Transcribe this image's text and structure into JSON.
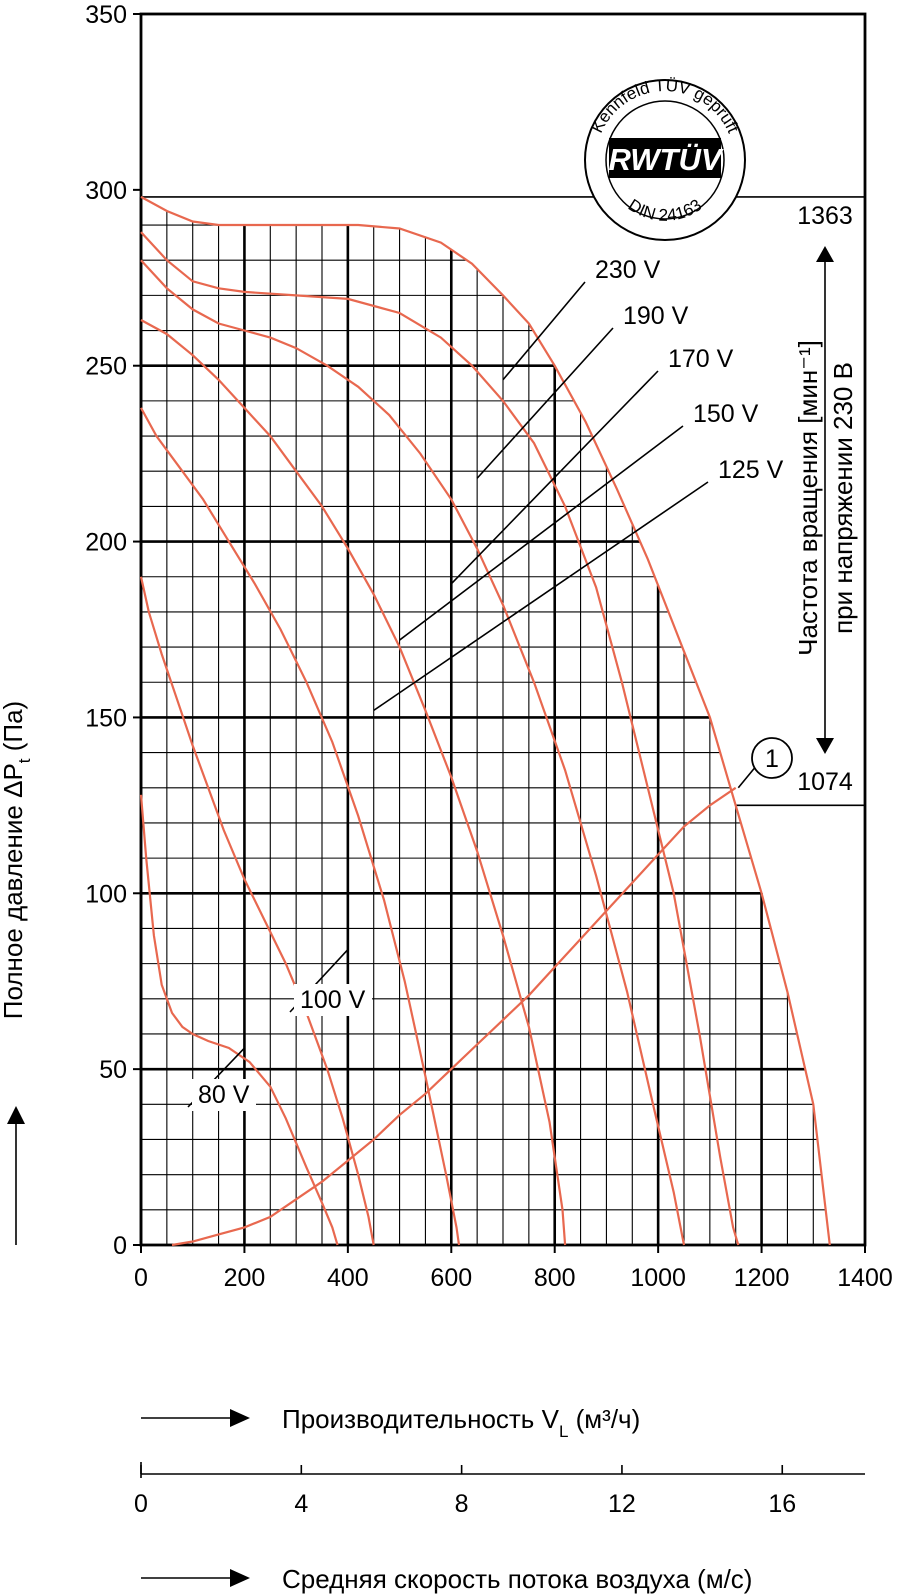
{
  "chart_data": {
    "type": "line",
    "xlabel_main": "Производительность V",
    "xlabel_sub": "L",
    "xlabel_unit": " (м³/ч)",
    "x2label": "Средняя скорость потока воздуха (м/с)",
    "ylabel_main": "Полное давление ΔP",
    "ylabel_sub": "t",
    "ylabel_unit": " (Па)",
    "xlim": [
      0,
      1400
    ],
    "ylim": [
      0,
      350
    ],
    "x_ticks": [
      "0",
      "200",
      "400",
      "600",
      "800",
      "1000",
      "1200",
      "1400"
    ],
    "y_ticks": [
      "0",
      "50",
      "100",
      "150",
      "200",
      "250",
      "300",
      "350"
    ],
    "x2_ticks": [
      "0",
      "4",
      "8",
      "12",
      "16"
    ],
    "x2_tick_values": [
      0,
      4,
      8,
      12,
      16
    ],
    "x2_factor": 77.5,
    "right_axis": {
      "label_line1": "Частота вращения [мин⁻¹]",
      "label_line2": "при напряжении 230 В",
      "upper_value": "1363",
      "upper_pressure": 298,
      "lower_value": "1074",
      "lower_pressure": 125
    },
    "logo": {
      "text_top": "Kennfeld TÜV geprüft",
      "brand": "RWTÜV",
      "text_bottom": "DIN 24163"
    },
    "grid": true,
    "series": [
      {
        "name": "230 V",
        "points": [
          [
            0,
            298
          ],
          [
            50,
            294
          ],
          [
            100,
            291
          ],
          [
            150,
            290
          ],
          [
            200,
            290
          ],
          [
            300,
            290
          ],
          [
            420,
            290
          ],
          [
            500,
            289
          ],
          [
            580,
            285
          ],
          [
            640,
            279
          ],
          [
            700,
            270
          ],
          [
            750,
            262
          ],
          [
            800,
            250
          ],
          [
            860,
            234
          ],
          [
            920,
            215
          ],
          [
            980,
            195
          ],
          [
            1020,
            180
          ],
          [
            1060,
            165
          ],
          [
            1100,
            150
          ],
          [
            1120,
            140
          ],
          [
            1150,
            125
          ],
          [
            1200,
            100
          ],
          [
            1250,
            72
          ],
          [
            1300,
            40
          ],
          [
            1320,
            15
          ],
          [
            1332,
            0
          ]
        ]
      },
      {
        "name": "190 V",
        "points": [
          [
            0,
            288
          ],
          [
            50,
            280
          ],
          [
            100,
            274
          ],
          [
            150,
            272
          ],
          [
            200,
            271
          ],
          [
            300,
            270
          ],
          [
            400,
            269
          ],
          [
            500,
            265
          ],
          [
            580,
            258
          ],
          [
            640,
            250
          ],
          [
            700,
            240
          ],
          [
            760,
            228
          ],
          [
            820,
            210
          ],
          [
            880,
            187
          ],
          [
            930,
            160
          ],
          [
            980,
            130
          ],
          [
            1030,
            100
          ],
          [
            1080,
            60
          ],
          [
            1120,
            25
          ],
          [
            1145,
            5
          ],
          [
            1155,
            0
          ]
        ]
      },
      {
        "name": "170 V",
        "points": [
          [
            0,
            280
          ],
          [
            50,
            272
          ],
          [
            100,
            266
          ],
          [
            150,
            262
          ],
          [
            200,
            260
          ],
          [
            250,
            258
          ],
          [
            300,
            255
          ],
          [
            360,
            250
          ],
          [
            420,
            244
          ],
          [
            480,
            236
          ],
          [
            540,
            225
          ],
          [
            600,
            212
          ],
          [
            650,
            198
          ],
          [
            700,
            182
          ],
          [
            760,
            160
          ],
          [
            820,
            135
          ],
          [
            880,
            105
          ],
          [
            940,
            72
          ],
          [
            990,
            40
          ],
          [
            1030,
            15
          ],
          [
            1050,
            0
          ]
        ]
      },
      {
        "name": "150 V",
        "points": [
          [
            0,
            263
          ],
          [
            50,
            259
          ],
          [
            100,
            253
          ],
          [
            150,
            246
          ],
          [
            200,
            238
          ],
          [
            250,
            230
          ],
          [
            300,
            220
          ],
          [
            350,
            210
          ],
          [
            400,
            198
          ],
          [
            450,
            185
          ],
          [
            500,
            170
          ],
          [
            550,
            152
          ],
          [
            600,
            133
          ],
          [
            650,
            112
          ],
          [
            700,
            88
          ],
          [
            750,
            62
          ],
          [
            790,
            35
          ],
          [
            815,
            10
          ],
          [
            820,
            0
          ]
        ]
      },
      {
        "name": "125 V",
        "points": [
          [
            0,
            238
          ],
          [
            30,
            230
          ],
          [
            70,
            222
          ],
          [
            120,
            212
          ],
          [
            170,
            200
          ],
          [
            220,
            188
          ],
          [
            270,
            175
          ],
          [
            320,
            160
          ],
          [
            370,
            143
          ],
          [
            420,
            122
          ],
          [
            470,
            98
          ],
          [
            510,
            75
          ],
          [
            550,
            48
          ],
          [
            590,
            20
          ],
          [
            610,
            5
          ],
          [
            615,
            0
          ]
        ]
      },
      {
        "name": "100 V",
        "points": [
          [
            0,
            190
          ],
          [
            15,
            180
          ],
          [
            40,
            168
          ],
          [
            70,
            155
          ],
          [
            100,
            142
          ],
          [
            130,
            130
          ],
          [
            160,
            118
          ],
          [
            200,
            104
          ],
          [
            240,
            92
          ],
          [
            280,
            80
          ],
          [
            320,
            66
          ],
          [
            360,
            50
          ],
          [
            390,
            36
          ],
          [
            420,
            20
          ],
          [
            440,
            8
          ],
          [
            450,
            0
          ]
        ]
      },
      {
        "name": "80 V",
        "points": [
          [
            0,
            128
          ],
          [
            10,
            110
          ],
          [
            25,
            88
          ],
          [
            40,
            74
          ],
          [
            60,
            66
          ],
          [
            80,
            62
          ],
          [
            100,
            60
          ],
          [
            130,
            58
          ],
          [
            170,
            56
          ],
          [
            210,
            52
          ],
          [
            250,
            45
          ],
          [
            280,
            36
          ],
          [
            320,
            22
          ],
          [
            350,
            12
          ],
          [
            370,
            5
          ],
          [
            380,
            0
          ]
        ]
      },
      {
        "name": "1",
        "points": [
          [
            60,
            0
          ],
          [
            100,
            1
          ],
          [
            150,
            3
          ],
          [
            200,
            5
          ],
          [
            250,
            8
          ],
          [
            300,
            13
          ],
          [
            350,
            18
          ],
          [
            400,
            24
          ],
          [
            450,
            30
          ],
          [
            500,
            37
          ],
          [
            550,
            43
          ],
          [
            600,
            50
          ],
          [
            650,
            57
          ],
          [
            700,
            64
          ],
          [
            750,
            71
          ],
          [
            800,
            79
          ],
          [
            850,
            87
          ],
          [
            900,
            95
          ],
          [
            950,
            103
          ],
          [
            1000,
            111
          ],
          [
            1050,
            119
          ],
          [
            1100,
            125
          ],
          [
            1150,
            130
          ]
        ]
      }
    ],
    "annotations": [
      {
        "text": "230 V",
        "data_x": 700,
        "data_y": 246
      },
      {
        "text": "190 V",
        "data_x": 650,
        "data_y": 218
      },
      {
        "text": "170 V",
        "data_x": 600,
        "data_y": 188
      },
      {
        "text": "150 V",
        "data_x": 500,
        "data_y": 172
      },
      {
        "text": "125 V",
        "data_x": 450,
        "data_y": 152
      },
      {
        "text": "100 V",
        "data_x": 400,
        "data_y": 84
      },
      {
        "text": "80 V",
        "data_x": 200,
        "data_y": 56
      },
      {
        "text": "1",
        "data_x": 1155,
        "data_y": 130
      }
    ]
  },
  "colors": {
    "curve": "#e8684f",
    "grid": "#000000",
    "background": "#ffffff"
  }
}
